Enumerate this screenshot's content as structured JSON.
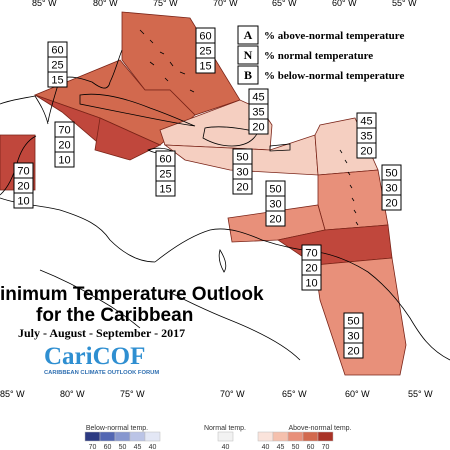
{
  "map": {
    "longitude_labels": [
      "85° W",
      "80° W",
      "75° W",
      "70° W",
      "65° W",
      "60° W",
      "55° W"
    ],
    "title_line1": "inimum Temperature Outlook",
    "title_line2": "for the Caribbean",
    "season": "July - August - September - 2017",
    "logo_text": "CariCOF",
    "logo_subtitle": "CARIBBEAN CLIMATE OUTLOOK FORUM"
  },
  "legend_key": [
    {
      "code": "A",
      "text": "% above-normal temperature"
    },
    {
      "code": "N",
      "text": "% normal temperature"
    },
    {
      "code": "B",
      "text": "% below-normal temperature"
    }
  ],
  "regions": [
    {
      "id": "bahamas",
      "A": "60",
      "N": "25",
      "B": "15",
      "fill": "#d2694e"
    },
    {
      "id": "gulf-cuba",
      "A": "60",
      "N": "25",
      "B": "15",
      "fill": "#d2694e"
    },
    {
      "id": "belize-yucatan",
      "A": "70",
      "N": "20",
      "B": "10",
      "fill": "#c0473c"
    },
    {
      "id": "central-america",
      "A": "70",
      "N": "20",
      "B": "10",
      "fill": "#c0473c"
    },
    {
      "id": "jamaica-cayman",
      "A": "60",
      "N": "25",
      "B": "15",
      "fill": "#c0473c"
    },
    {
      "id": "turks-caicos",
      "A": "45",
      "N": "35",
      "B": "20",
      "fill": "#f5cfc1"
    },
    {
      "id": "hispaniola",
      "A": "50",
      "N": "30",
      "B": "20",
      "fill": "#f5cfc1"
    },
    {
      "id": "leeward-islands",
      "A": "45",
      "N": "35",
      "B": "20",
      "fill": "#f5cfc1"
    },
    {
      "id": "windward-islands",
      "A": "50",
      "N": "30",
      "B": "20",
      "fill": "#e8907a"
    },
    {
      "id": "caribbean-coast",
      "A": "50",
      "N": "30",
      "B": "20",
      "fill": "#e8907a"
    },
    {
      "id": "trinidad-venezuela",
      "A": "70",
      "N": "20",
      "B": "10",
      "fill": "#c0473c"
    },
    {
      "id": "guianas",
      "A": "50",
      "N": "30",
      "B": "20",
      "fill": "#e8907a"
    }
  ],
  "colorbar": {
    "below_label": "Below-normal temp.",
    "normal_label": "Normal temp.",
    "above_label": "Above-normal temp.",
    "below": [
      {
        "value": "70",
        "color": "#2c3a82"
      },
      {
        "value": "60",
        "color": "#5367b3"
      },
      {
        "value": "50",
        "color": "#8797cf"
      },
      {
        "value": "45",
        "color": "#bbc4e6"
      },
      {
        "value": "40",
        "color": "#e3e7f5"
      }
    ],
    "normal": [
      {
        "value": "40",
        "color": "#f2f2f2"
      }
    ],
    "above": [
      {
        "value": "40",
        "color": "#fae3db"
      },
      {
        "value": "45",
        "color": "#f5c0ad"
      },
      {
        "value": "50",
        "color": "#e8907a"
      },
      {
        "value": "60",
        "color": "#d2694e"
      },
      {
        "value": "70",
        "color": "#a93226"
      }
    ]
  }
}
